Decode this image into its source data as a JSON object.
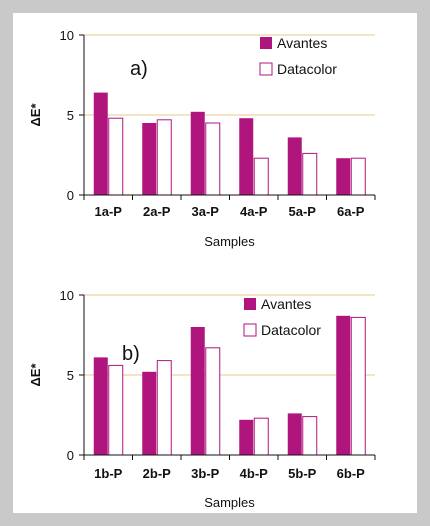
{
  "colors": {
    "avantes": "#b0157d",
    "datacolor_edge": "#b0157d",
    "datacolor_fill": "#ffffff",
    "gridline": "#e6c98a",
    "axis": "#111111",
    "frame": "#c9c9c9"
  },
  "chart_data": [
    {
      "type": "bar",
      "panel_label": "a)",
      "categories": [
        "1a-P",
        "2a-P",
        "3a-P",
        "4a-P",
        "5a-P",
        "6a-P"
      ],
      "series": [
        {
          "name": "Avantes",
          "values": [
            6.4,
            4.5,
            5.2,
            4.8,
            3.6,
            2.3
          ]
        },
        {
          "name": "Datacolor",
          "values": [
            4.8,
            4.7,
            4.5,
            2.3,
            2.6,
            2.3
          ]
        }
      ],
      "xlabel": "Samples",
      "ylabel": "ΔE*",
      "ylim": [
        0,
        10
      ],
      "yticks": [
        "0",
        "5",
        "10"
      ],
      "grid": true,
      "legend_position": "top-right"
    },
    {
      "type": "bar",
      "panel_label": "b)",
      "categories": [
        "1b-P",
        "2b-P",
        "3b-P",
        "4b-P",
        "5b-P",
        "6b-P"
      ],
      "series": [
        {
          "name": "Avantes",
          "values": [
            6.1,
            5.2,
            8.0,
            2.2,
            2.6,
            8.7
          ]
        },
        {
          "name": "Datacolor",
          "values": [
            5.6,
            5.9,
            6.7,
            2.3,
            2.4,
            8.6
          ]
        }
      ],
      "xlabel": "Samples",
      "ylabel": "ΔE*",
      "ylim": [
        0,
        10
      ],
      "yticks": [
        "0",
        "5",
        "10"
      ],
      "grid": true,
      "legend_position": "top-right"
    }
  ]
}
